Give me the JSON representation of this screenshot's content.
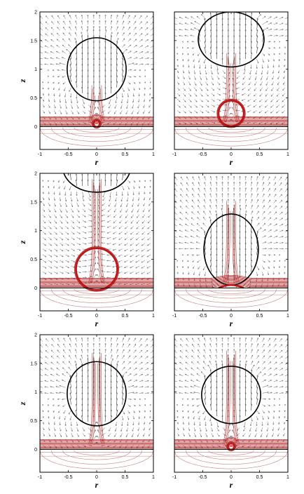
{
  "figure": {
    "axis_titles": {
      "x": "r",
      "y": "z"
    },
    "x_ticks": [
      "-1",
      "-0.5",
      "0",
      "0.5",
      "1"
    ],
    "y_ticks": [
      "0",
      "0.5",
      "1",
      "1.5",
      "2"
    ]
  },
  "chart_data": {
    "type": "diagram",
    "xlim": [
      -1,
      1
    ],
    "ylim": [
      -0.4,
      2
    ],
    "grid": false,
    "colors": {
      "interface": "#000000",
      "contours": "#b01e1e",
      "contours_light": "#c98080",
      "velocity": "#555555"
    },
    "panels": [
      {
        "bubble": {
          "cx": 0,
          "cy": 1.0,
          "rx": 0.52,
          "ry": 0.55
        },
        "small": {
          "cx": 0,
          "cy": 0.05,
          "r": 0.05
        },
        "jet_top": 0.5
      },
      {
        "bubble": {
          "cx": 0,
          "cy": 1.52,
          "rx": 0.58,
          "ry": 0.48
        },
        "small": {
          "cx": 0,
          "cy": 0.23,
          "r": 0.22,
          "sit": true
        },
        "jet_top": 1.05
      },
      {
        "bubble": {
          "cx": 0,
          "cy": 2.12,
          "rx": 0.6,
          "ry": 0.45
        },
        "small": {
          "cx": 0,
          "cy": 0.33,
          "r": 0.36,
          "sit": true
        },
        "jet_top": 1.68
      },
      {
        "bubble": {
          "cx": 0,
          "cy": 0.67,
          "rx": 0.48,
          "ry": 0.62
        },
        "small": null,
        "jet_top": 1.3,
        "drop": true
      },
      {
        "bubble": {
          "cx": 0,
          "cy": 0.97,
          "rx": 0.52,
          "ry": 0.56
        },
        "small": null,
        "jet_top": 1.45
      },
      {
        "bubble": {
          "cx": 0,
          "cy": 0.95,
          "rx": 0.52,
          "ry": 0.5
        },
        "small": {
          "cx": 0,
          "cy": 0.05,
          "r": 0.05
        },
        "jet_top": 1.5
      }
    ]
  }
}
